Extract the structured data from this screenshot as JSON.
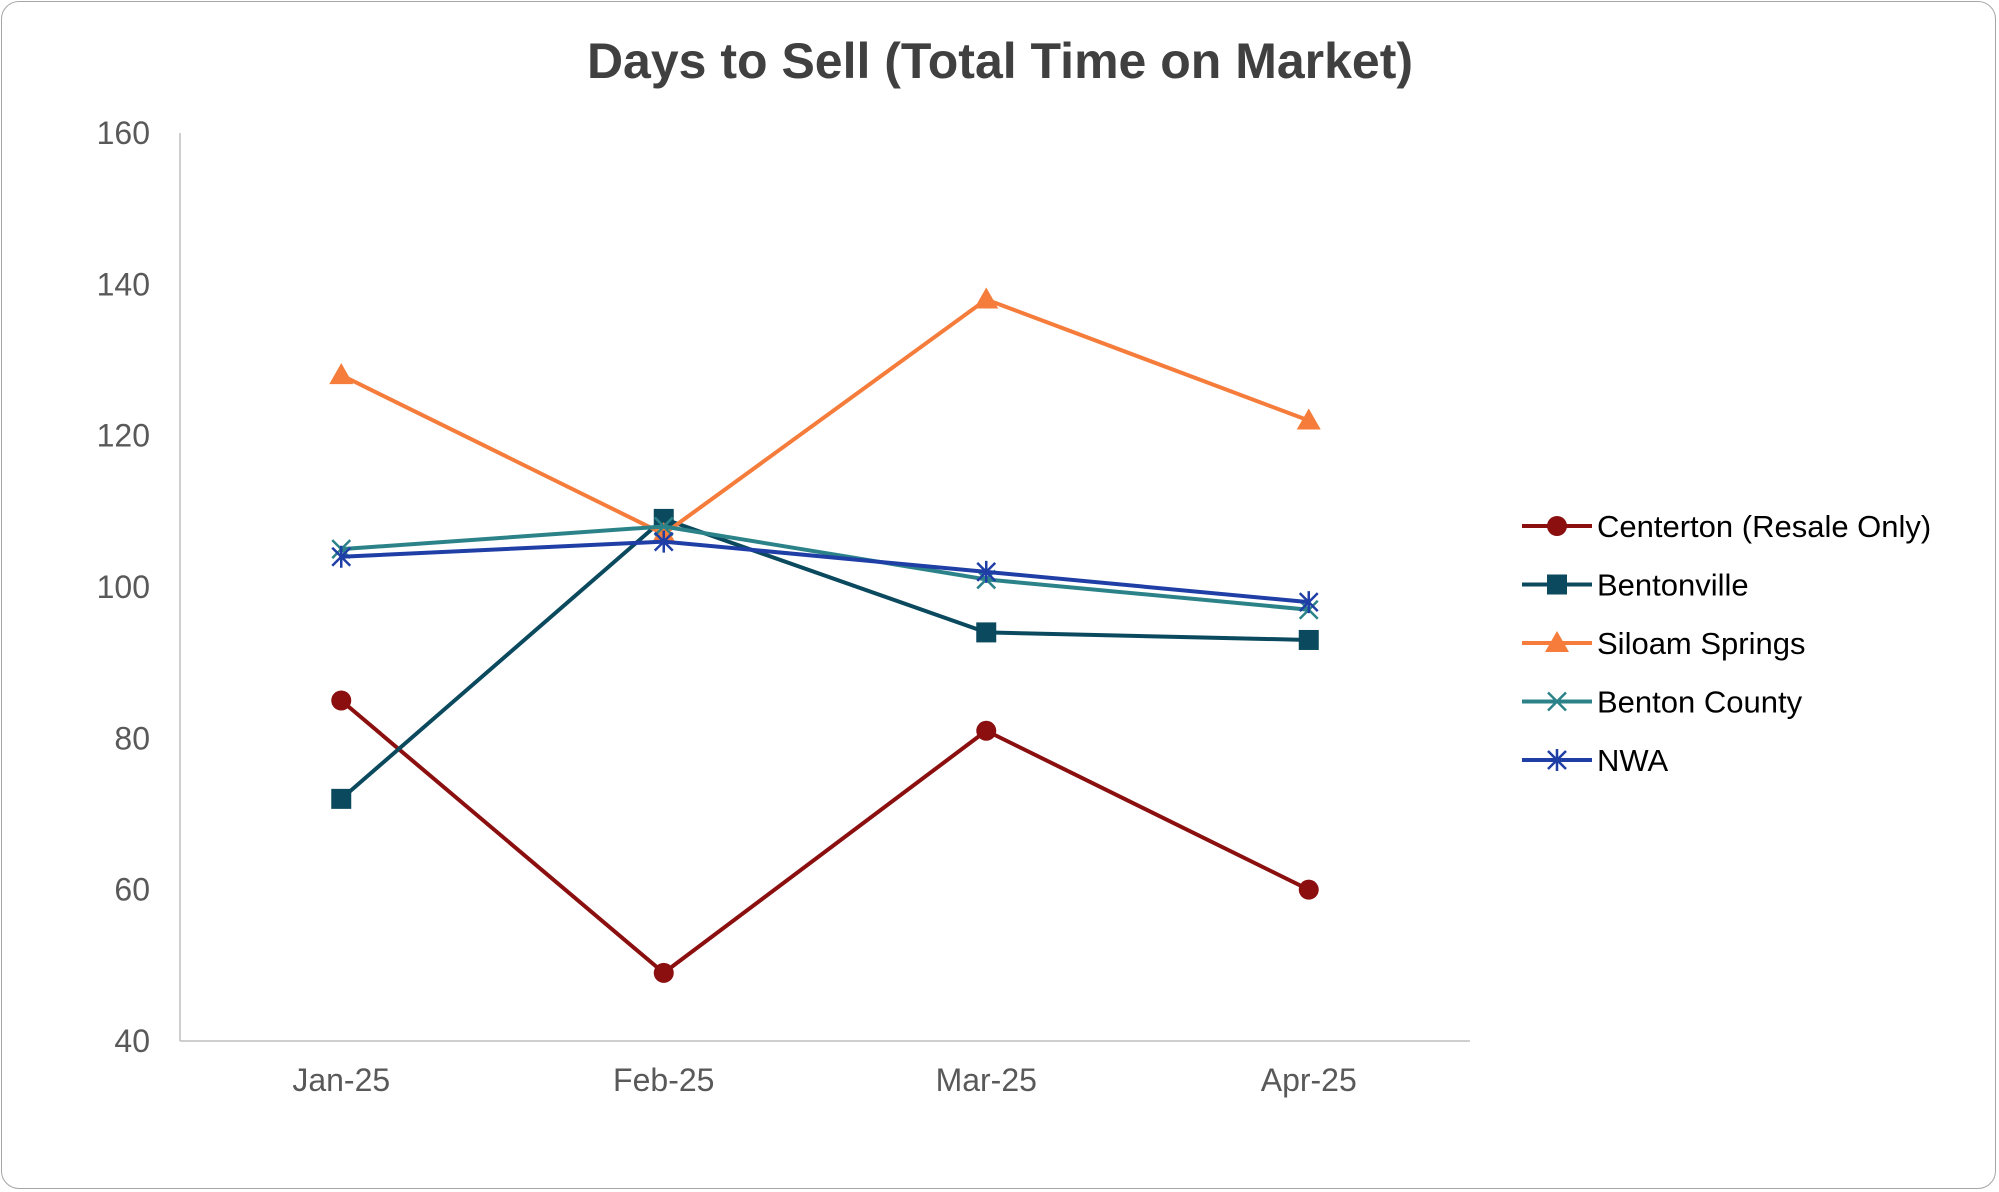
{
  "chart_data": {
    "type": "line",
    "title": "Days to Sell (Total Time on Market)",
    "xlabel": "",
    "ylabel": "",
    "categories": [
      "Jan-25",
      "Feb-25",
      "Mar-25",
      "Apr-25"
    ],
    "ylim": [
      40,
      160
    ],
    "yticks": [
      40,
      60,
      80,
      100,
      120,
      140,
      160
    ],
    "grid": false,
    "legend_position": "right",
    "series": [
      {
        "name": "Centerton (Resale Only)",
        "values": [
          85,
          49,
          81,
          60
        ],
        "color": "#8b0f0f",
        "marker": "circle"
      },
      {
        "name": "Bentonville",
        "values": [
          72,
          109,
          94,
          93
        ],
        "color": "#0b4a5e",
        "marker": "square"
      },
      {
        "name": "Siloam Springs",
        "values": [
          128,
          107,
          138,
          122
        ],
        "color": "#f57c3a",
        "marker": "triangle"
      },
      {
        "name": "Benton County",
        "values": [
          105,
          108,
          101,
          97
        ],
        "color": "#2b8389",
        "marker": "x"
      },
      {
        "name": "NWA",
        "values": [
          104,
          106,
          102,
          98
        ],
        "color": "#1f3fa6",
        "marker": "star"
      }
    ]
  }
}
